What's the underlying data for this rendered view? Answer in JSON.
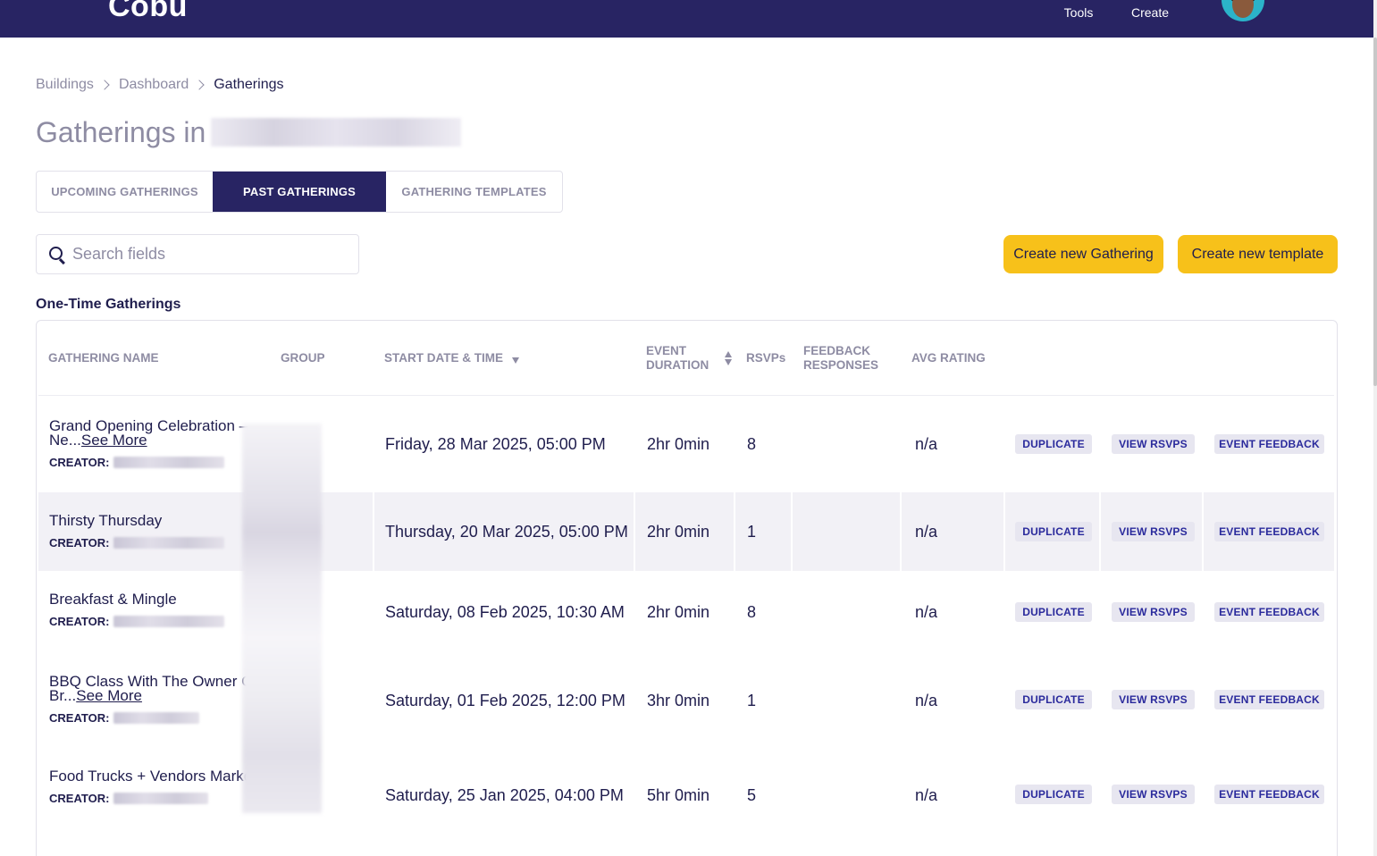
{
  "app": {
    "logo": "Cobu",
    "nav": [
      {
        "label": "Tools",
        "icon": "tools-icon"
      },
      {
        "label": "Create",
        "icon": "create-icon"
      }
    ],
    "avatar": "user-avatar"
  },
  "breadcrumb": [
    "Buildings",
    "Dashboard",
    "Gatherings"
  ],
  "page_title": "Gatherings in",
  "tabs": [
    {
      "label": "UPCOMING GATHERINGS",
      "active": false
    },
    {
      "label": "PAST GATHERINGS",
      "active": true
    },
    {
      "label": "GATHERING TEMPLATES",
      "active": false
    }
  ],
  "search": {
    "placeholder": "Search fields",
    "value": ""
  },
  "buttons": {
    "create_gathering": "Create new Gathering",
    "create_template": "Create new template"
  },
  "section_title": "One-Time Gatherings",
  "table": {
    "headers": {
      "name": "GATHERING NAME",
      "group": "GROUP",
      "start": "START DATE & TIME",
      "duration_1": "EVENT",
      "duration_2": "DURATION",
      "rsvps": "RSVPs",
      "feedback_1": "FEEDBACK",
      "feedback_2": "RESPONSES",
      "rating": "AVG RATING"
    },
    "creator_label": "CREATOR:",
    "actions": {
      "duplicate": "DUPLICATE",
      "view_rsvps": "VIEW RSVPS",
      "event_feedback": "EVENT FEEDBACK"
    },
    "rows": [
      {
        "name": "Grand Opening Celebration – Ne...",
        "see_more": "See More",
        "start": "Friday, 28 Mar 2025, 05:00 PM",
        "duration": "2hr 0min",
        "rsvps": "8",
        "feedback": "",
        "rating": "n/a"
      },
      {
        "name": "Thirsty Thursday",
        "see_more": "",
        "start": "Thursday, 20 Mar 2025, 05:00 PM",
        "duration": "2hr 0min",
        "rsvps": "1",
        "feedback": "",
        "rating": "n/a"
      },
      {
        "name": "Breakfast & Mingle",
        "see_more": "",
        "start": "Saturday, 08 Feb 2025, 10:30 AM",
        "duration": "2hr 0min",
        "rsvps": "8",
        "feedback": "",
        "rating": "n/a"
      },
      {
        "name": "BBQ Class With The Owner Of Br...",
        "see_more": "See More",
        "start": "Saturday, 01 Feb 2025, 12:00 PM",
        "duration": "3hr 0min",
        "rsvps": "1",
        "feedback": "",
        "rating": "n/a"
      },
      {
        "name": "Food Trucks + Vendors Market!",
        "see_more": "",
        "start": "Saturday, 25 Jan 2025, 04:00 PM",
        "duration": "5hr 0min",
        "rsvps": "5",
        "feedback": "",
        "rating": "n/a"
      }
    ]
  },
  "colors": {
    "navbar": "#282463",
    "accent": "#f7c11a",
    "action_text": "#2a2a9c",
    "row_alt": "#f2f1f6"
  }
}
